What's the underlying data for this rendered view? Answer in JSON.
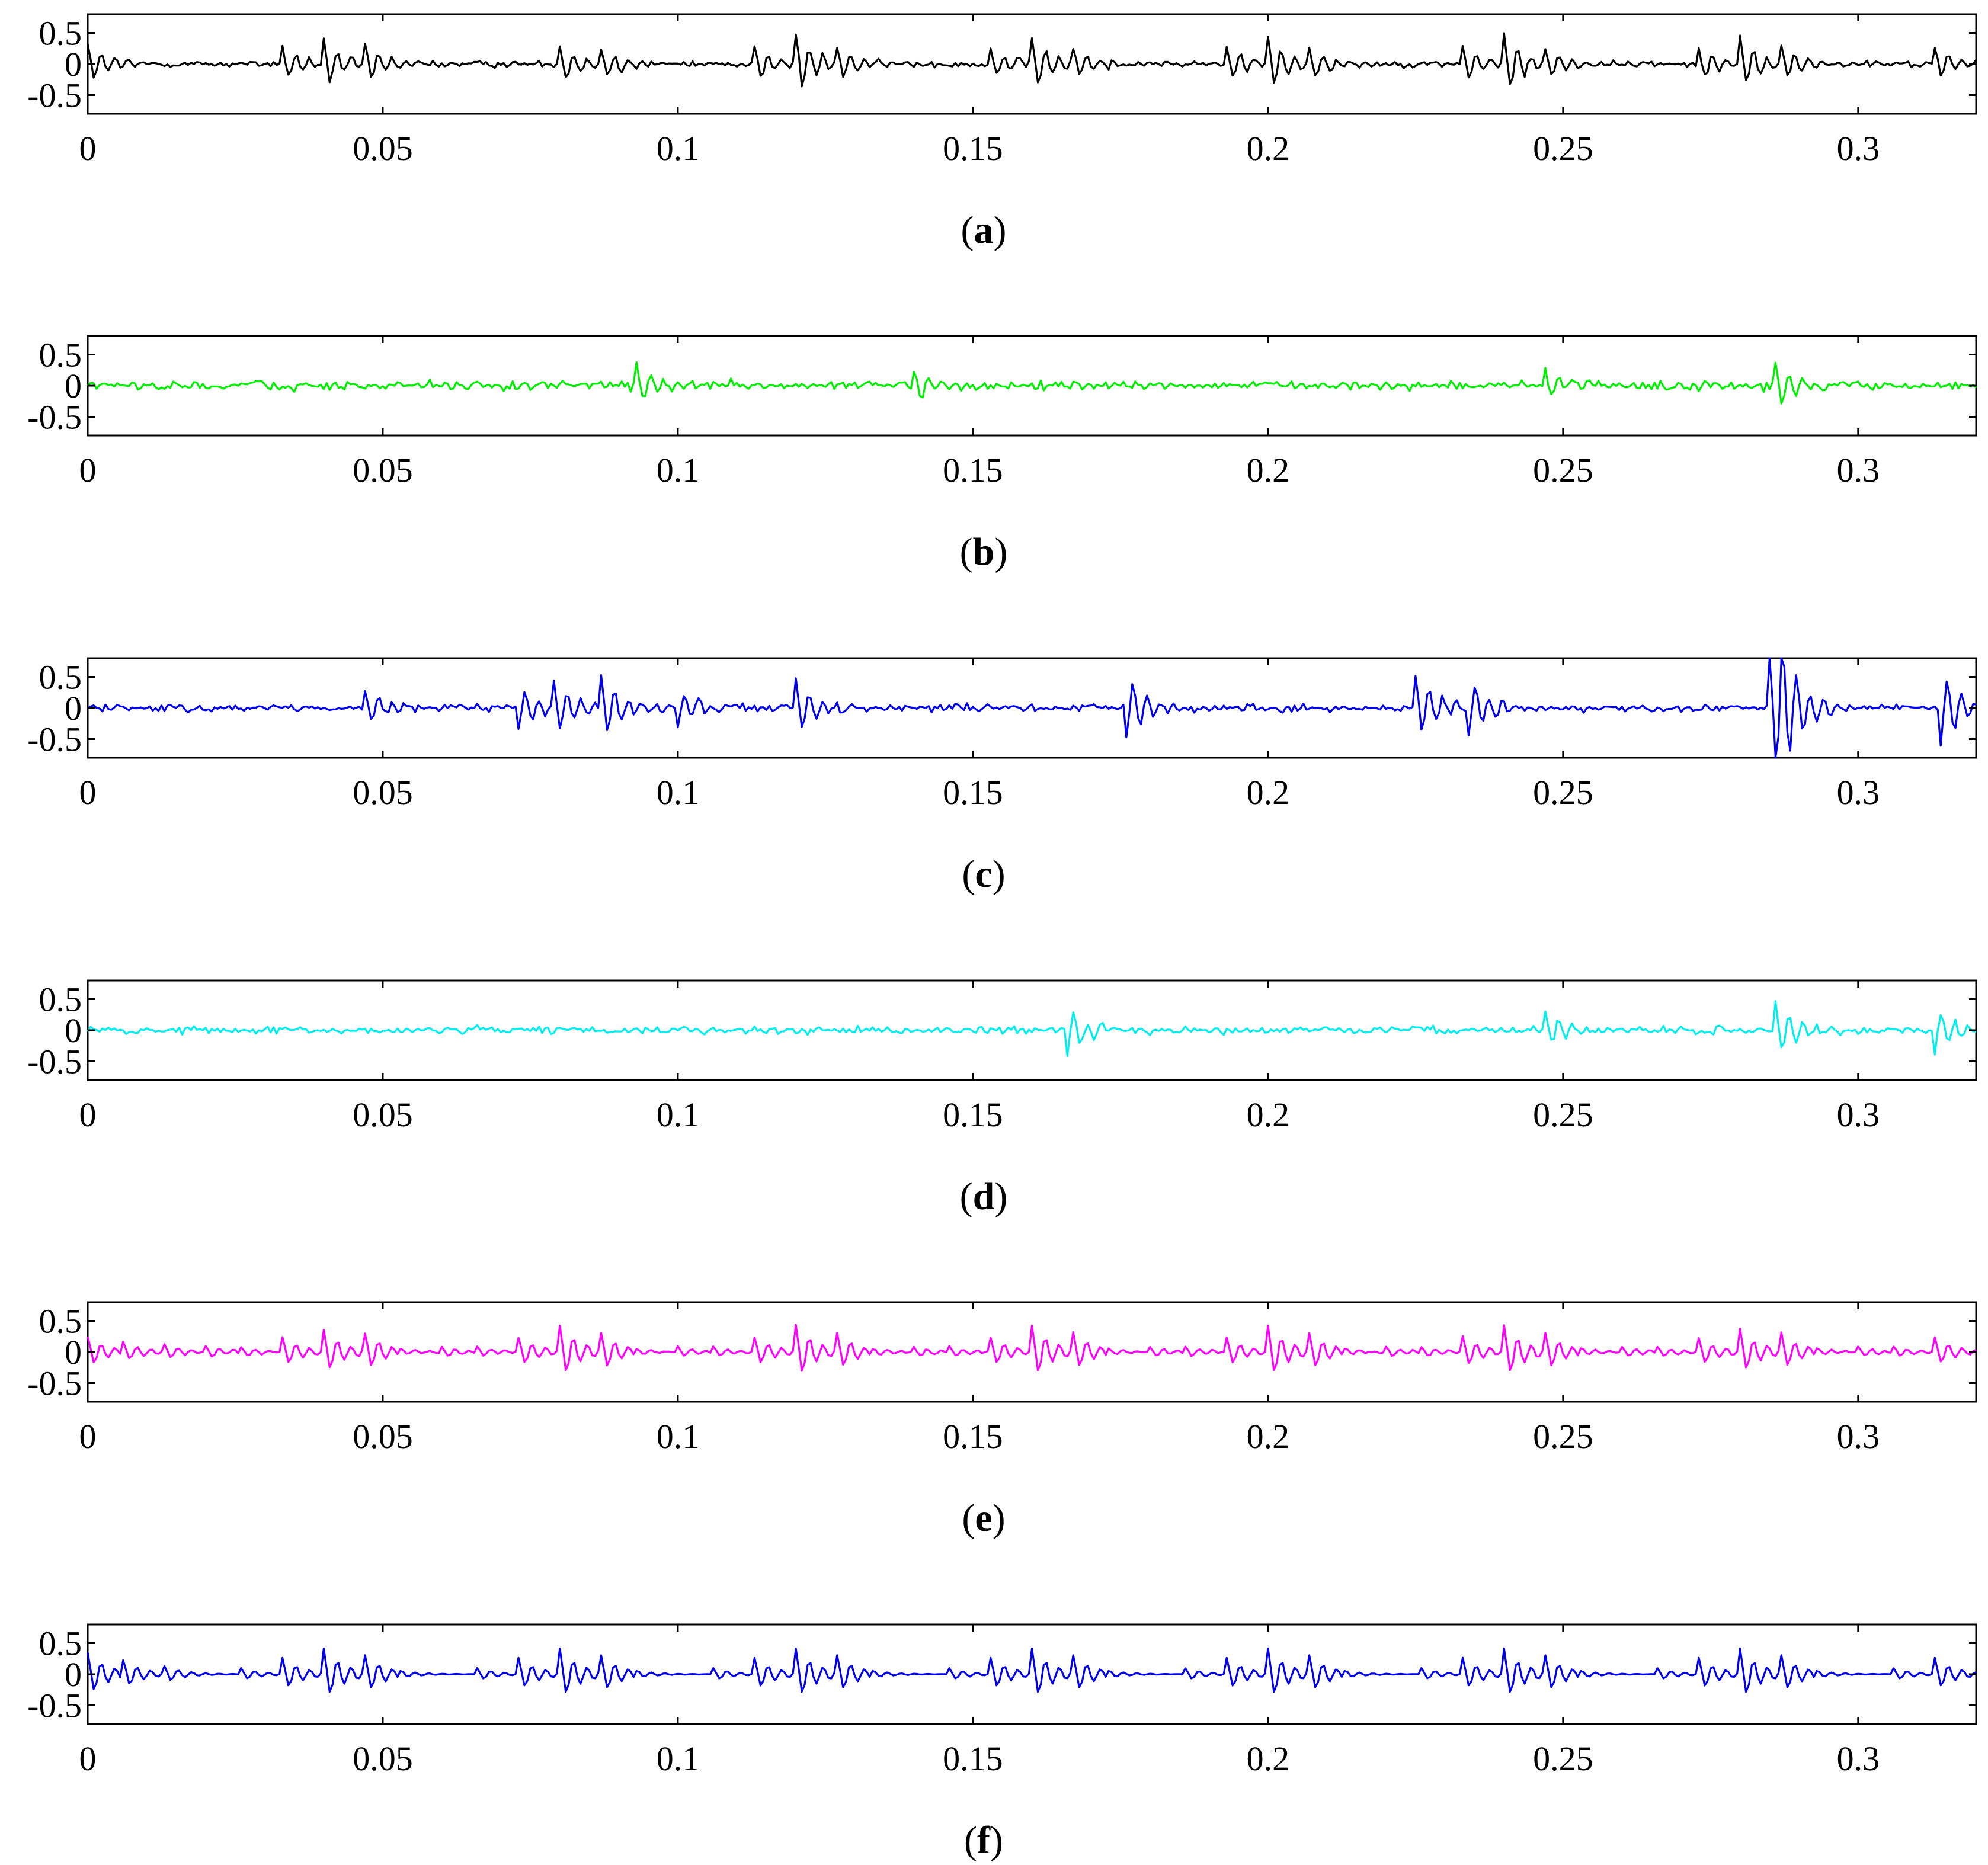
{
  "chart_data": [
    {
      "panel": "(a)",
      "type": "line",
      "color": "#000000",
      "xlim": [
        0,
        0.32
      ],
      "ylim": [
        -0.8,
        0.8
      ],
      "xticks": [
        "0",
        "0.05",
        "0.1",
        "0.15",
        "0.2",
        "0.25",
        "0.3"
      ],
      "yticks": [
        "0.5",
        "0",
        "-0.5"
      ],
      "grid": false,
      "series": [
        {
          "style": "vibration signal with periodic impulses and noise",
          "x_step": 0.0005,
          "amplitude_noise": 0.1,
          "impulse_times": [
            0.0,
            0.033,
            0.04,
            0.047,
            0.08,
            0.087,
            0.113,
            0.12,
            0.127,
            0.153,
            0.16,
            0.167,
            0.193,
            0.2,
            0.207,
            0.233,
            0.24,
            0.247,
            0.273,
            0.28,
            0.287,
            0.313
          ],
          "impulse_peaks": [
            0.35,
            0.28,
            0.35,
            0.25,
            0.3,
            0.22,
            0.3,
            0.45,
            0.22,
            0.25,
            0.38,
            0.2,
            0.28,
            0.4,
            0.2,
            0.3,
            0.45,
            0.22,
            0.28,
            0.38,
            0.22,
            0.28
          ]
        }
      ],
      "caption_prefix": "(",
      "caption_letter": "a",
      "caption_suffix": ")"
    },
    {
      "panel": "(b)",
      "type": "line",
      "color": "#00ee00",
      "xlim": [
        0,
        0.32
      ],
      "ylim": [
        -0.8,
        0.8
      ],
      "xticks": [
        "0",
        "0.05",
        "0.1",
        "0.15",
        "0.2",
        "0.25",
        "0.3"
      ],
      "yticks": [
        "0.5",
        "0",
        "-0.5"
      ],
      "grid": false,
      "series": [
        {
          "style": "broadband noise component",
          "x_step": 0.0005,
          "amplitude_noise": 0.15,
          "impulse_times": [
            0.093,
            0.14,
            0.247,
            0.286
          ],
          "impulse_peaks": [
            0.35,
            0.25,
            0.3,
            0.35
          ]
        }
      ],
      "caption_prefix": "(",
      "caption_letter": "b",
      "caption_suffix": ")"
    },
    {
      "panel": "(c)",
      "type": "line",
      "color": "#0000ee",
      "xlim": [
        0,
        0.32
      ],
      "ylim": [
        -0.8,
        0.8
      ],
      "xticks": [
        "0",
        "0.05",
        "0.1",
        "0.15",
        "0.2",
        "0.25",
        "0.3"
      ],
      "yticks": [
        "0.5",
        "0",
        "-0.5"
      ],
      "grid": false,
      "series": [
        {
          "style": "step-like noisy component with large spikes",
          "x_step": 0.0005,
          "amplitude_noise": 0.12,
          "impulse_times": [
            0.047,
            0.073,
            0.079,
            0.087,
            0.1,
            0.12,
            0.176,
            0.225,
            0.234,
            0.285,
            0.286,
            0.314
          ],
          "impulse_peaks": [
            0.3,
            -0.35,
            0.4,
            0.55,
            -0.3,
            0.45,
            -0.5,
            0.5,
            -0.5,
            0.8,
            -0.8,
            -0.6
          ]
        }
      ],
      "caption_prefix": "(",
      "caption_letter": "c",
      "caption_suffix": ")"
    },
    {
      "panel": "(d)",
      "type": "line",
      "color": "#00eeee",
      "xlim": [
        0,
        0.32
      ],
      "ylim": [
        -0.8,
        0.8
      ],
      "xticks": [
        "0",
        "0.05",
        "0.1",
        "0.15",
        "0.2",
        "0.25",
        "0.3"
      ],
      "yticks": [
        "0.5",
        "0",
        "-0.5"
      ],
      "grid": false,
      "series": [
        {
          "style": "broadband noise component",
          "x_step": 0.0005,
          "amplitude_noise": 0.13,
          "impulse_times": [
            0.166,
            0.247,
            0.286,
            0.313
          ],
          "impulse_peaks": [
            -0.45,
            0.3,
            0.45,
            -0.35
          ]
        }
      ],
      "caption_prefix": "(",
      "caption_letter": "d",
      "caption_suffix": ")"
    },
    {
      "panel": "(e)",
      "type": "line",
      "color": "#ff00ff",
      "xlim": [
        0,
        0.32
      ],
      "ylim": [
        -0.8,
        0.8
      ],
      "xticks": [
        "0",
        "0.05",
        "0.1",
        "0.15",
        "0.2",
        "0.25",
        "0.3"
      ],
      "yticks": [
        "0.5",
        "0",
        "-0.5"
      ],
      "grid": false,
      "series": [
        {
          "style": "denoised periodic impulse component",
          "x_step": 0.0005,
          "amplitude_noise": 0.025,
          "impulse_times": [
            0.0,
            0.006,
            0.013,
            0.02,
            0.026,
            0.033,
            0.04,
            0.047,
            0.053,
            0.06,
            0.066,
            0.073,
            0.08,
            0.087,
            0.093,
            0.1,
            0.106,
            0.113,
            0.12,
            0.127,
            0.133,
            0.14,
            0.146,
            0.153,
            0.16,
            0.167,
            0.173,
            0.18,
            0.186,
            0.193,
            0.2,
            0.207,
            0.213,
            0.22,
            0.226,
            0.233,
            0.24,
            0.247,
            0.253,
            0.26,
            0.266,
            0.273,
            0.28,
            0.287,
            0.293,
            0.3,
            0.306,
            0.313
          ],
          "impulse_peaks": [
            0.25,
            0.2,
            0.1,
            0.08,
            0.1,
            0.22,
            0.33,
            0.25,
            0.1,
            0.08,
            0.1,
            0.22,
            0.4,
            0.25,
            0.1,
            0.08,
            0.1,
            0.22,
            0.4,
            0.25,
            0.1,
            0.08,
            0.1,
            0.22,
            0.4,
            0.25,
            0.1,
            0.08,
            0.1,
            0.22,
            0.4,
            0.25,
            0.1,
            0.08,
            0.1,
            0.25,
            0.4,
            0.25,
            0.1,
            0.08,
            0.1,
            0.22,
            0.33,
            0.25,
            0.1,
            0.08,
            0.1,
            0.22
          ]
        }
      ],
      "caption_prefix": "(",
      "caption_letter": "e",
      "caption_suffix": ")"
    },
    {
      "panel": "(f)",
      "type": "line",
      "color": "#0000ee",
      "xlim": [
        0,
        0.32
      ],
      "ylim": [
        -0.8,
        0.8
      ],
      "xticks": [
        "0",
        "0.05",
        "0.1",
        "0.15",
        "0.2",
        "0.25",
        "0.3"
      ],
      "yticks": [
        "0.5",
        "0",
        "-0.5"
      ],
      "grid": false,
      "series": [
        {
          "style": "clean periodic impulse component",
          "x_step": 0.0005,
          "amplitude_noise": 0.004,
          "impulse_times": [
            0.0,
            0.006,
            0.013,
            0.026,
            0.033,
            0.04,
            0.047,
            0.053,
            0.066,
            0.073,
            0.08,
            0.087,
            0.093,
            0.106,
            0.113,
            0.12,
            0.127,
            0.133,
            0.146,
            0.153,
            0.16,
            0.167,
            0.173,
            0.186,
            0.193,
            0.2,
            0.207,
            0.213,
            0.226,
            0.233,
            0.24,
            0.247,
            0.253,
            0.266,
            0.273,
            0.28,
            0.287,
            0.293,
            0.306,
            0.313
          ],
          "impulse_peaks": [
            0.35,
            0.28,
            0.1,
            0.1,
            0.25,
            0.38,
            0.25,
            0.1,
            0.1,
            0.25,
            0.38,
            0.25,
            0.1,
            0.1,
            0.25,
            0.38,
            0.25,
            0.1,
            0.1,
            0.25,
            0.38,
            0.25,
            0.1,
            0.1,
            0.25,
            0.38,
            0.25,
            0.1,
            0.1,
            0.25,
            0.38,
            0.25,
            0.1,
            0.1,
            0.25,
            0.38,
            0.25,
            0.1,
            0.1,
            0.25
          ]
        }
      ],
      "caption_prefix": "(",
      "caption_letter": "f",
      "caption_suffix": ")"
    }
  ]
}
